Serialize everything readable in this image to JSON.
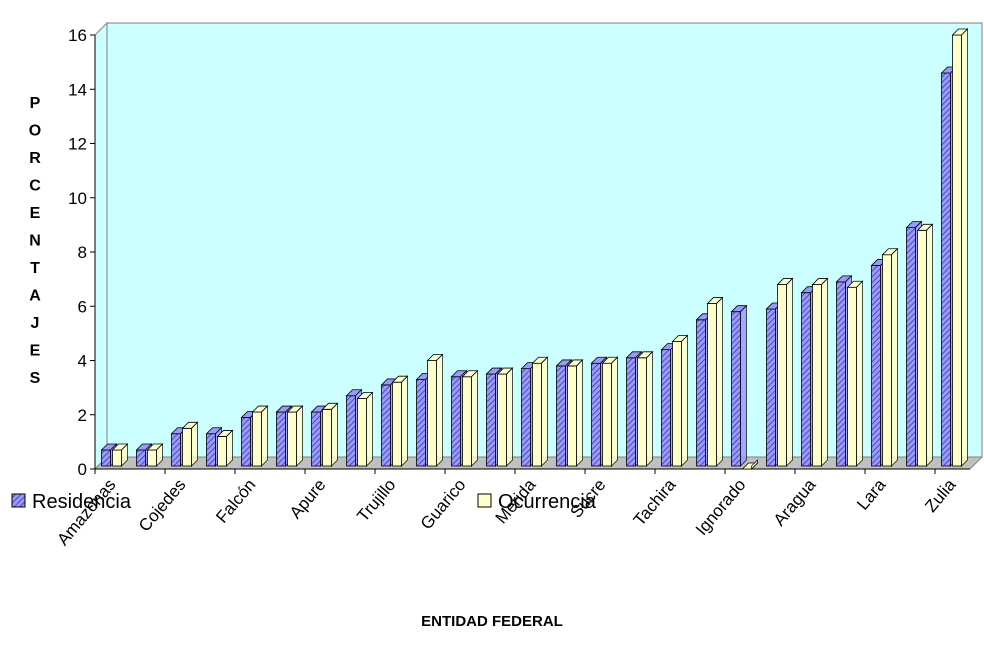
{
  "chart_data": {
    "type": "bar3d",
    "y_label": "PORCENTAJES",
    "x_label": "ENTIDAD FEDERAL",
    "categories": [
      "Amazonas",
      null,
      "Cojedes",
      null,
      "Falcón",
      null,
      "Apure",
      null,
      "Trujillo",
      null,
      "Guarico",
      null,
      "Merida",
      null,
      "Sucre",
      null,
      "Tachira",
      null,
      "Ignorado",
      null,
      "Aragua",
      null,
      "Lara",
      null,
      "Zulia"
    ],
    "series": [
      {
        "name": "Residencia",
        "color": "#9999ff",
        "values": [
          0.7,
          0.7,
          1.3,
          1.3,
          1.9,
          2.1,
          2.1,
          2.7,
          3.1,
          3.3,
          3.4,
          3.5,
          3.7,
          3.8,
          3.9,
          4.1,
          4.4,
          5.5,
          5.8,
          5.9,
          6.5,
          6.9,
          7.5,
          8.9,
          14.6
        ]
      },
      {
        "name": "Ocurrencia",
        "color": "#ffffcc",
        "values": [
          0.7,
          0.7,
          1.5,
          1.2,
          2.1,
          2.1,
          2.2,
          2.6,
          3.2,
          4.0,
          3.4,
          3.5,
          3.9,
          3.8,
          3.9,
          4.1,
          4.7,
          6.1,
          0,
          6.8,
          6.8,
          6.7,
          7.9,
          8.8,
          16.0
        ]
      }
    ],
    "ylim": [
      0,
      16
    ],
    "yticks": [
      0,
      2,
      4,
      6,
      8,
      10,
      12,
      14,
      16
    ],
    "wall_color": "#ccffff",
    "floor_color": "#c0c0c0"
  }
}
